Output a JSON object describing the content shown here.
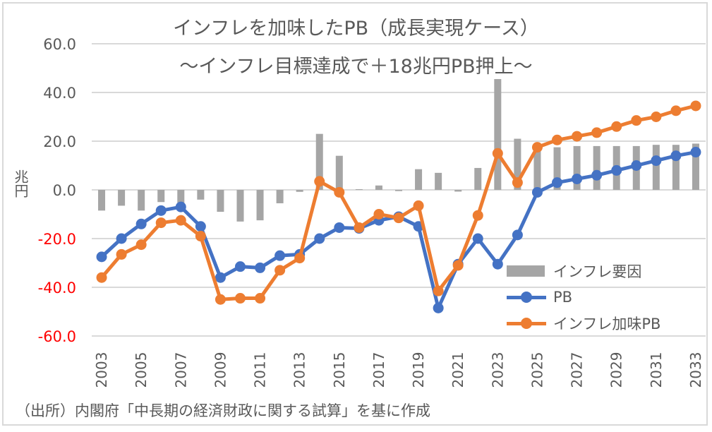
{
  "chart_data": {
    "type": "bar+line",
    "title": "インフレを加味したPB（成長実現ケース）",
    "subtitle": "～インフレ目標達成で＋18兆円PB押上～",
    "ylabel": "兆円",
    "xlabel": "",
    "ylim": [
      -60,
      60
    ],
    "yticks": [
      "60.0",
      "40.0",
      "20.0",
      "0.0",
      "-20.0",
      "-40.0",
      "-60.0"
    ],
    "ytick_values": [
      60,
      40,
      20,
      0,
      -20,
      -40,
      -60
    ],
    "negative_tick_color": "#ff0000",
    "grid": true,
    "legend_placement": "bottom-right",
    "categories": [
      2003,
      2004,
      2005,
      2006,
      2007,
      2008,
      2009,
      2010,
      2011,
      2012,
      2013,
      2014,
      2015,
      2016,
      2017,
      2018,
      2019,
      2020,
      2021,
      2022,
      2023,
      2024,
      2025,
      2026,
      2027,
      2028,
      2029,
      2030,
      2031,
      2032,
      2033
    ],
    "xtick_labels": [
      "2003",
      "2005",
      "2007",
      "2009",
      "2011",
      "2013",
      "2015",
      "2017",
      "2019",
      "2021",
      "2023",
      "2025",
      "2027",
      "2029",
      "2031",
      "2033"
    ],
    "series": [
      {
        "name": "インフレ要因",
        "type": "bar",
        "color": "#a5a5a5",
        "values": [
          -8.5,
          -6.5,
          -8.5,
          -5,
          -5.5,
          -4,
          -9,
          -13,
          -12.5,
          -5.5,
          -0.8,
          23,
          14,
          0.3,
          1.8,
          -0.5,
          8.5,
          7,
          -0.7,
          9,
          45.5,
          21,
          19,
          17.5,
          18,
          18,
          18,
          18,
          18.5,
          18.5,
          19
        ]
      },
      {
        "name": "PB",
        "type": "line",
        "color": "#4472c4",
        "values": [
          -27.5,
          -20,
          -14,
          -8.5,
          -7,
          -15,
          -36,
          -31.5,
          -32,
          -27,
          -26.5,
          -20,
          -15.5,
          -15.8,
          -12.5,
          -11,
          -15,
          -48.5,
          -30.5,
          -20,
          -30.5,
          -18.5,
          -1,
          3,
          4.5,
          6,
          8,
          10,
          12,
          14,
          15.5
        ]
      },
      {
        "name": "インフレ加味PB",
        "type": "line",
        "color": "#ed7d31",
        "values": [
          -36,
          -26.5,
          -22.5,
          -13.5,
          -12.5,
          -19,
          -45,
          -44.5,
          -44.5,
          -33,
          -28,
          3.5,
          -1,
          -15.5,
          -10,
          -11.5,
          -6.5,
          -41.5,
          -31,
          -10.5,
          15,
          3,
          17.5,
          20.5,
          22,
          23.5,
          26,
          28.5,
          30,
          32.5,
          34.5
        ]
      }
    ]
  },
  "source": "（出所）内閣府「中長期の経済財政に関する試算」を基に作成"
}
